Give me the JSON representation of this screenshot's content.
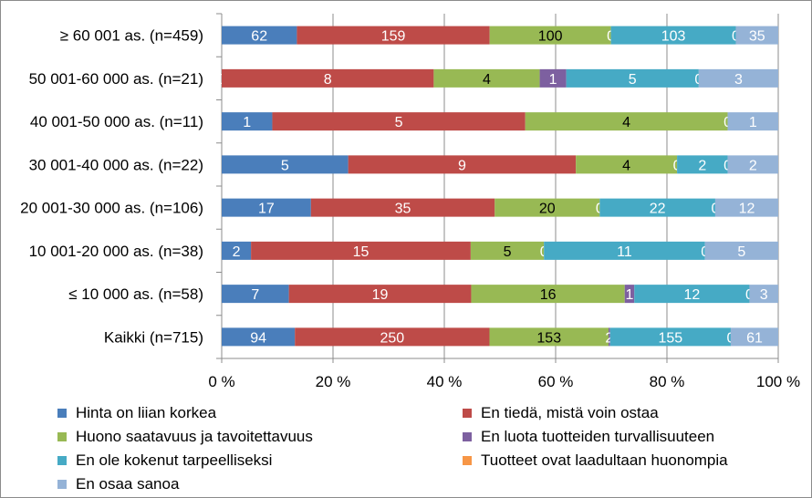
{
  "chart_data": {
    "type": "bar",
    "orientation": "horizontal",
    "stacked": "percent",
    "categories": [
      "≥ 60 001 as. (n=459)",
      "50 001-60 000 as. (n=21)",
      "40 001-50 000 as. (n=11)",
      "30 001-40 000 as. (n=22)",
      "20 001-30 000 as. (n=106)",
      "10 001-20 000 as. (n=38)",
      "≤ 10 000 as. (n=58)",
      "Kaikki (n=715)"
    ],
    "series": [
      {
        "name": "Hinta on liian korkea",
        "color": "#4a7ebb",
        "values": [
          62,
          0,
          1,
          5,
          17,
          2,
          7,
          94
        ]
      },
      {
        "name": "En tiedä, mistä voin ostaa",
        "color": "#be4b48",
        "values": [
          159,
          8,
          5,
          9,
          35,
          15,
          19,
          250
        ]
      },
      {
        "name": "Huono saatavuus ja tavoitettavuus",
        "color": "#98b954",
        "values": [
          100,
          4,
          4,
          4,
          20,
          5,
          16,
          153
        ]
      },
      {
        "name": "En luota tuotteiden turvallisuuteen",
        "color": "#7d60a0",
        "values": [
          0,
          1,
          0,
          0,
          0,
          0,
          1,
          2
        ]
      },
      {
        "name": "En ole kokenut tarpeelliseksi",
        "color": "#46aac5",
        "values": [
          103,
          5,
          0,
          2,
          22,
          11,
          12,
          155
        ]
      },
      {
        "name": "Tuotteet ovat laadultaan huonompia",
        "color": "#f79646",
        "values": [
          0,
          0,
          0,
          0,
          0,
          0,
          0,
          0
        ]
      },
      {
        "name": "En osaa sanoa",
        "color": "#95b3d7",
        "values": [
          35,
          3,
          1,
          2,
          12,
          5,
          3,
          61
        ]
      }
    ],
    "data_labels": [
      [
        "62",
        "159",
        "100",
        "0",
        "103",
        "0",
        "35"
      ],
      [
        "0",
        "8",
        "4",
        "1",
        "5",
        "0",
        "3"
      ],
      [
        "1",
        "5",
        "4",
        "",
        "",
        "0",
        "1"
      ],
      [
        "5",
        "9",
        "4",
        "0",
        "2",
        "0",
        "2"
      ],
      [
        "17",
        "35",
        "20",
        "0",
        "22",
        "0",
        "12"
      ],
      [
        "2",
        "15",
        "5",
        "0",
        "11",
        "0",
        "5"
      ],
      [
        "7",
        "19",
        "16",
        "1",
        "12",
        "0",
        "3"
      ],
      [
        "94",
        "250",
        "153",
        "2",
        "155",
        "0",
        "61"
      ]
    ],
    "xticks": [
      "0 %",
      "20 %",
      "40 %",
      "60 %",
      "80 %",
      "100 %"
    ],
    "xlim": [
      0,
      100
    ],
    "grid": true,
    "legend_position": "bottom"
  }
}
